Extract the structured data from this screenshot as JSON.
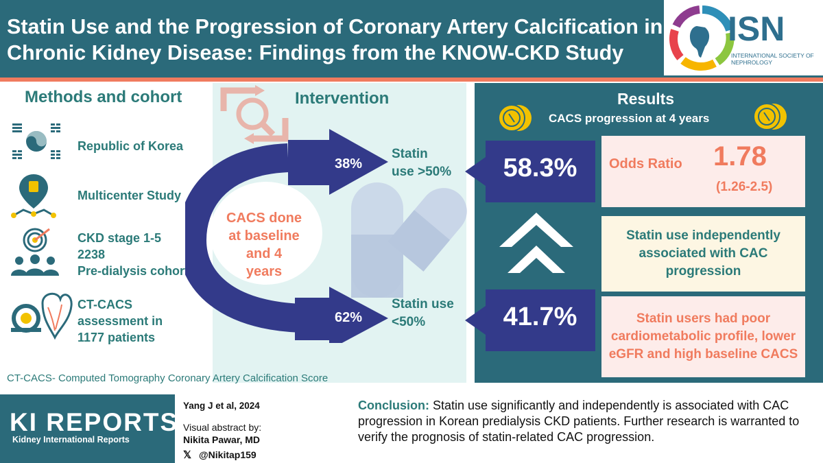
{
  "header": {
    "title": "Statin Use and the Progression of Coronary Artery Calcification in Chronic Kidney Disease: Findings from the KNOW-CKD Study",
    "logo_text": "ISN",
    "logo_subtitle": "INTERNATIONAL SOCIETY OF NEPHROLOGY"
  },
  "methods": {
    "title": "Methods and cohort",
    "items": [
      {
        "icon": "korea-flag-icon",
        "label": "Republic of Korea"
      },
      {
        "icon": "map-pin-network-icon",
        "label": "Multicenter  Study"
      },
      {
        "icon": "target-people-icon",
        "lines": [
          "CKD stage 1-5",
          "2238",
          "Pre-dialysis  cohort"
        ]
      },
      {
        "icon": "ct-scanner-heart-icon",
        "lines": [
          "CT-CACS",
          "assessment in",
          "1177 patients"
        ]
      }
    ],
    "footnote": "CT-CACS- Computed Tomography  Coronary Artery Calcification Score"
  },
  "intervention": {
    "title": "Intervention",
    "center_lines": [
      "CACS done",
      "at baseline",
      "and 4 years"
    ],
    "top_arrow_pct": "38%",
    "bottom_arrow_pct": "62%",
    "top_label_lines": [
      "Statin",
      "use >50%"
    ],
    "bottom_label_lines": [
      "Statin use",
      "<50%"
    ]
  },
  "results": {
    "title": "Results",
    "subtitle": "CACS progression at 4 years",
    "pct_high": "58.3%",
    "pct_low": "41.7%",
    "odds_label": "Odds Ratio",
    "odds_value": "1.78",
    "odds_ci": "(1.26-2.5)",
    "finding1": "Statin use independently associated with CAC progression",
    "finding2": "Statin users had poor cardiometabolic profile, lower eGFR and high baseline CACS"
  },
  "footer": {
    "journal_title": "KI REPORTS",
    "journal_subtitle": "Kidney International Reports",
    "citation": "Yang J et al, 2024",
    "visual_abstract_label": "Visual abstract by:",
    "author": "Nikita Pawar, MD",
    "handle": "@Nikitap159",
    "conclusion_label": "Conclusion:",
    "conclusion_text": " Statin use significantly and independently  is associated with CAC progression in Korean predialysis CKD patients. Further research is warranted to verify the prognosis of statin-related CAC progression."
  },
  "colors": {
    "teal_dark": "#2b6a7a",
    "teal_text": "#2b7a78",
    "coral": "#f07b5e",
    "navy": "#333a8a",
    "pale_mint": "#e2f3f2",
    "pale_pink": "#fdecea",
    "pale_yellow": "#fdf6e3",
    "gold": "#f2c200"
  }
}
